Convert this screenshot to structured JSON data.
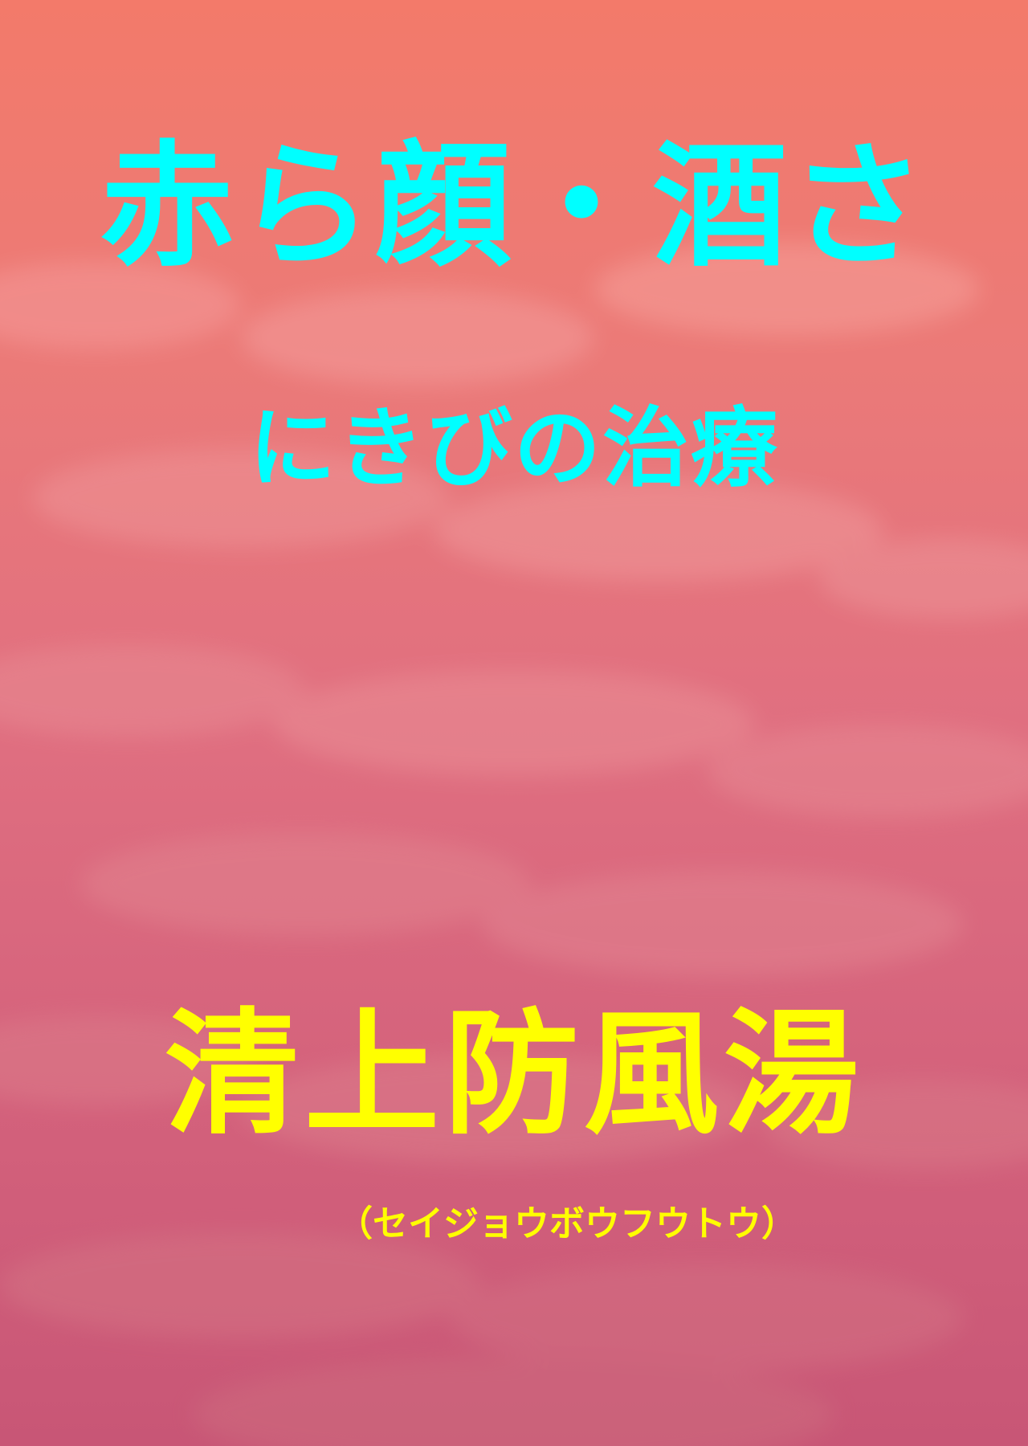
{
  "cover": {
    "title_main": "赤ら顔・酒さ",
    "title_sub": "にきびの治療",
    "product_name": "清上防風湯",
    "product_reading": "（セイジョウボウフウトウ）"
  },
  "colors": {
    "title": "#00ffff",
    "product": "#ffff00",
    "background_top": "#f37a6a",
    "background_bottom": "#c85676"
  }
}
